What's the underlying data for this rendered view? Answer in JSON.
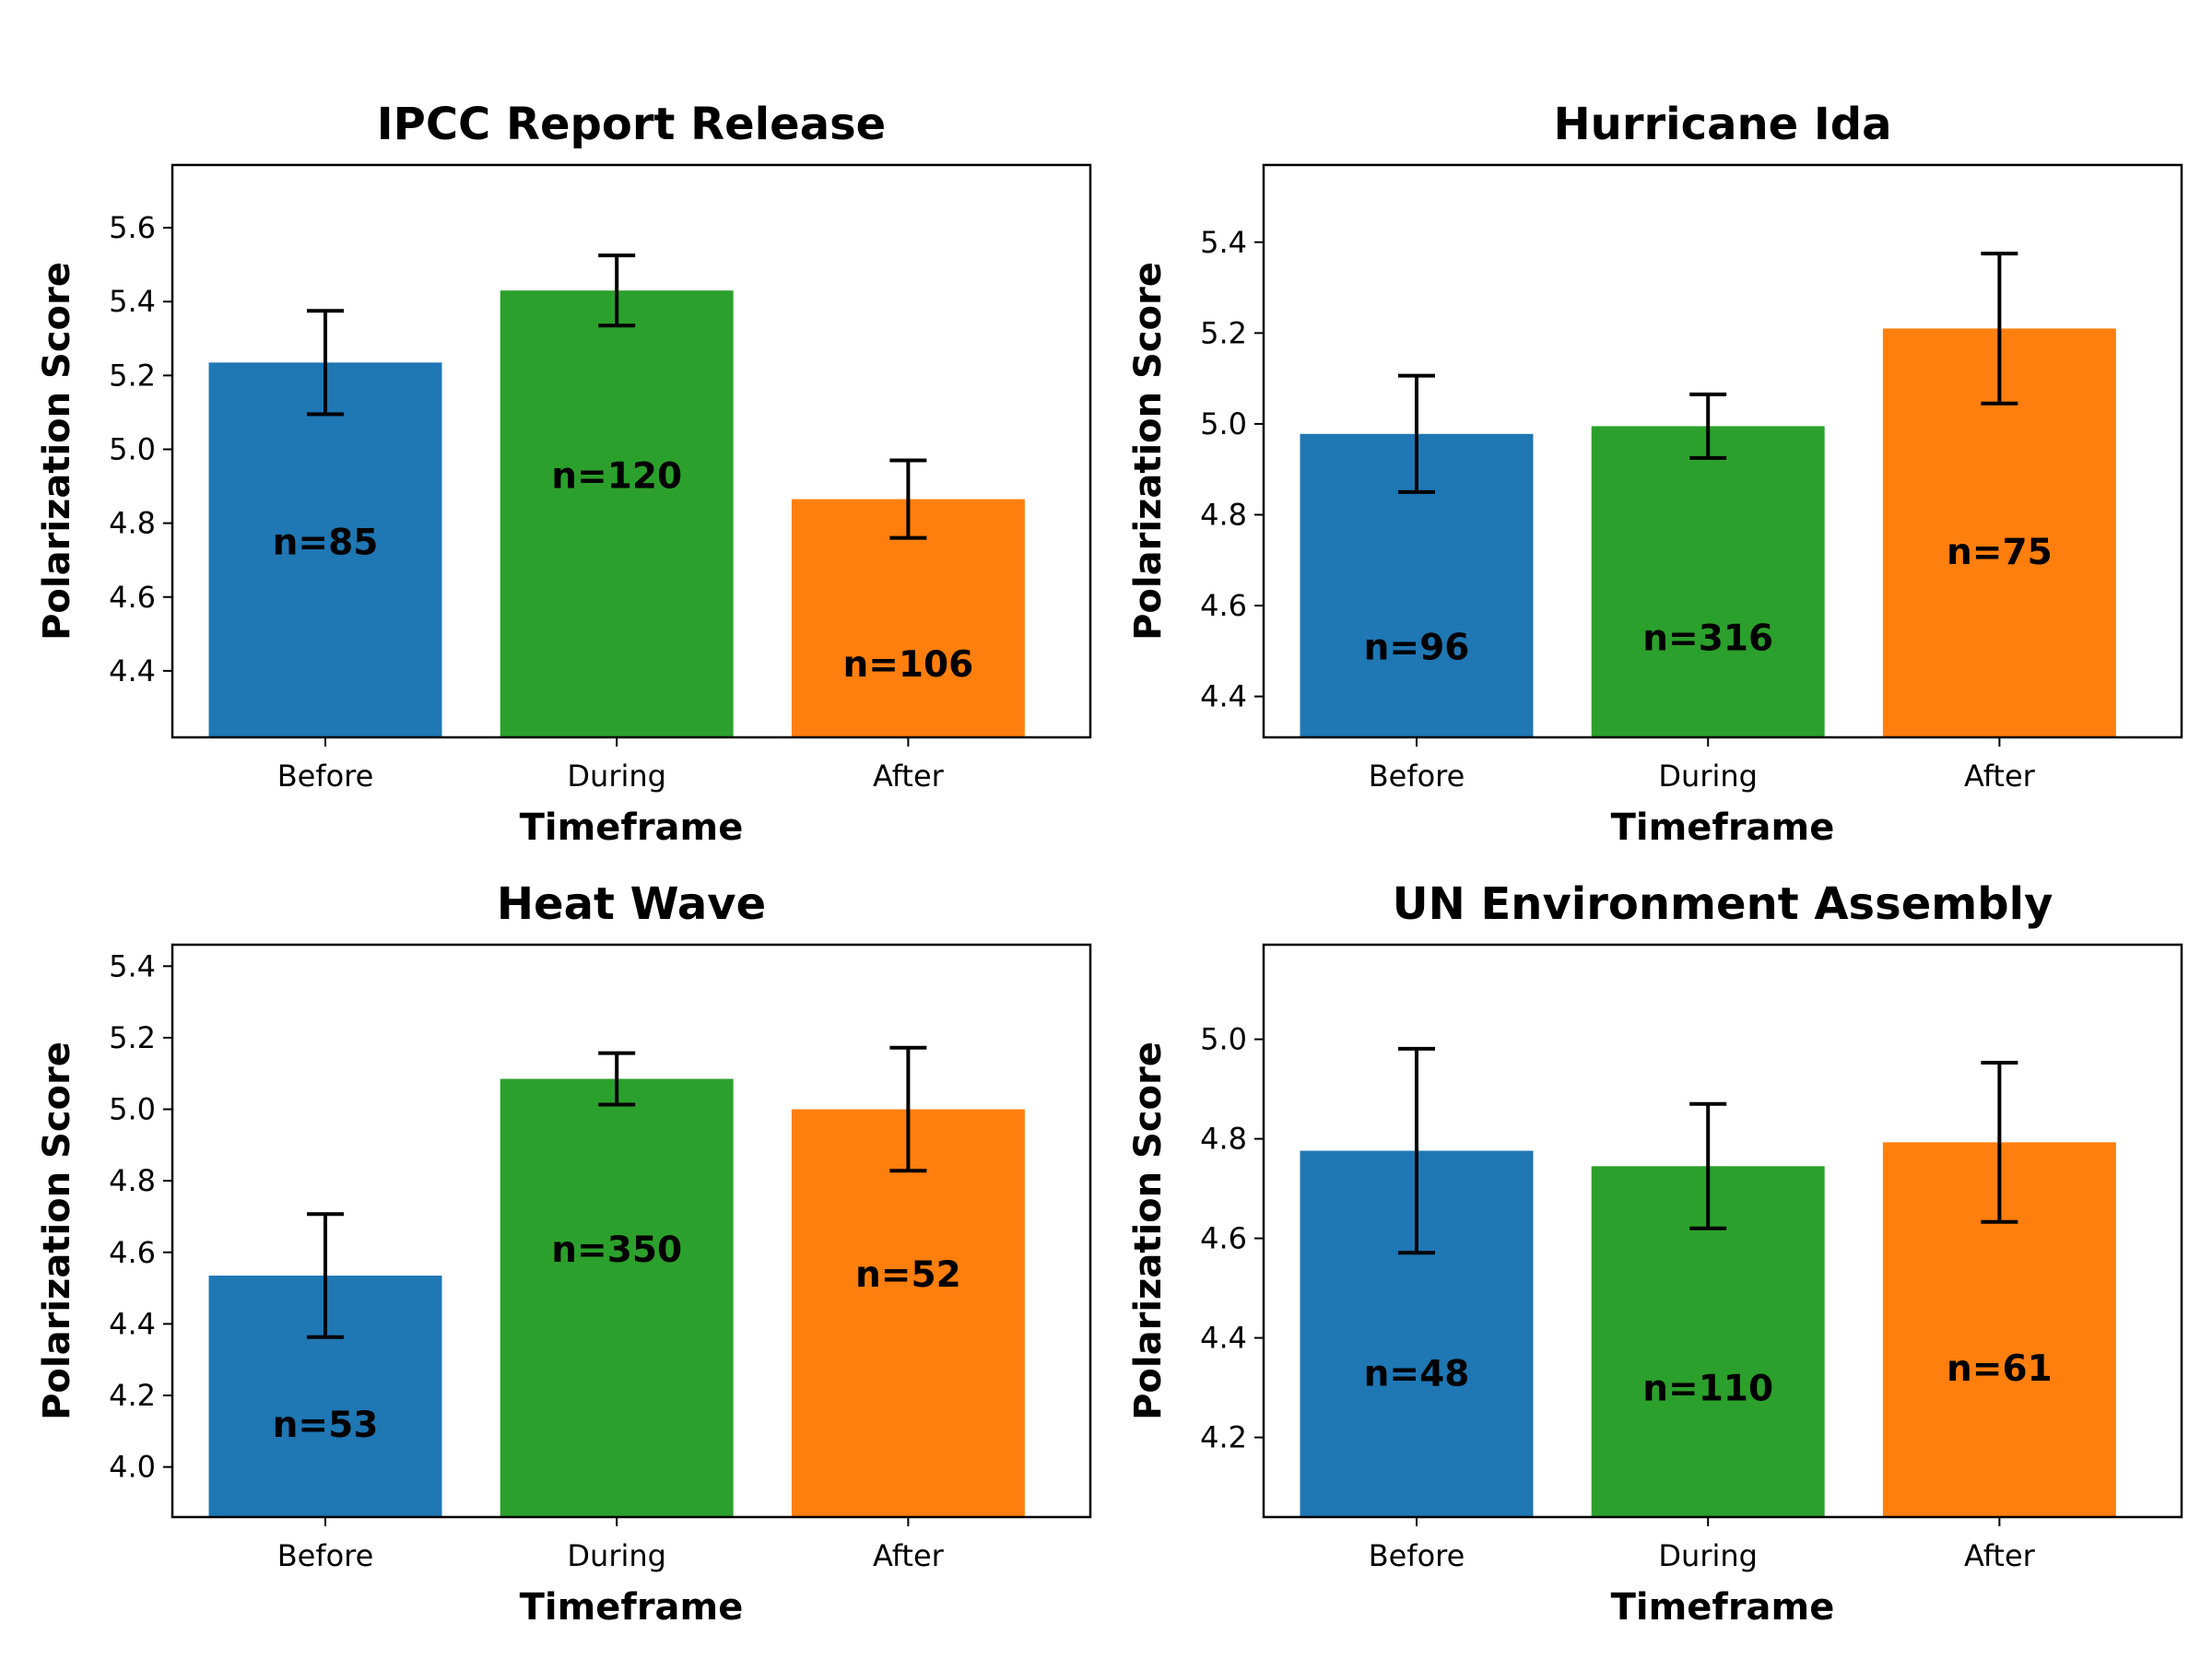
{
  "chart_data": [
    {
      "type": "bar",
      "title": "IPCC Report Release",
      "xlabel": "Timeframe",
      "ylabel": "Polarization Score",
      "categories": [
        "Before",
        "During",
        "After"
      ],
      "values": [
        5.235,
        5.43,
        4.865
      ],
      "errors": [
        0.14,
        0.095,
        0.105
      ],
      "n_labels": [
        "n=85",
        "n=120",
        "n=106"
      ],
      "n_label_y": [
        4.75,
        4.93,
        4.42
      ],
      "ylim": [
        4.22,
        5.77
      ],
      "yticks": [
        4.4,
        4.6,
        4.8,
        5.0,
        5.2,
        5.4,
        5.6
      ],
      "ytick_labels": [
        "4.4",
        "4.6",
        "4.8",
        "5.0",
        "5.2",
        "5.4",
        "5.6"
      ]
    },
    {
      "type": "bar",
      "title": "Hurricane Ida",
      "xlabel": "Timeframe",
      "ylabel": "Polarization Score",
      "categories": [
        "Before",
        "During",
        "After"
      ],
      "values": [
        4.978,
        4.995,
        5.21
      ],
      "errors": [
        0.128,
        0.07,
        0.165
      ],
      "n_labels": [
        "n=96",
        "n=316",
        "n=75"
      ],
      "n_label_y": [
        4.51,
        4.53,
        4.72
      ],
      "ylim": [
        4.31,
        5.57
      ],
      "yticks": [
        4.4,
        4.6,
        4.8,
        5.0,
        5.2,
        5.4
      ],
      "ytick_labels": [
        "4.4",
        "4.6",
        "4.8",
        "5.0",
        "5.2",
        "5.4"
      ]
    },
    {
      "type": "bar",
      "title": "Heat Wave",
      "xlabel": "Timeframe",
      "ylabel": "Polarization Score",
      "categories": [
        "Before",
        "During",
        "After"
      ],
      "values": [
        4.535,
        5.085,
        5.0
      ],
      "errors": [
        0.172,
        0.072,
        0.172
      ],
      "n_labels": [
        "n=53",
        "n=350",
        "n=52"
      ],
      "n_label_y": [
        4.12,
        4.61,
        4.54
      ],
      "ylim": [
        3.86,
        5.46
      ],
      "yticks": [
        4.0,
        4.2,
        4.4,
        4.6,
        4.8,
        5.0,
        5.2,
        5.4
      ],
      "ytick_labels": [
        "4.0",
        "4.2",
        "4.4",
        "4.6",
        "4.8",
        "5.0",
        "5.2",
        "5.4"
      ]
    },
    {
      "type": "bar",
      "title": "UN Environment Assembly",
      "xlabel": "Timeframe",
      "ylabel": "Polarization Score",
      "categories": [
        "Before",
        "During",
        "After"
      ],
      "values": [
        4.776,
        4.745,
        4.793
      ],
      "errors": [
        0.205,
        0.125,
        0.16
      ],
      "n_labels": [
        "n=48",
        "n=110",
        "n=61"
      ],
      "n_label_y": [
        4.33,
        4.3,
        4.34
      ],
      "ylim": [
        4.04,
        5.19
      ],
      "yticks": [
        4.2,
        4.4,
        4.6,
        4.8,
        5.0
      ],
      "ytick_labels": [
        "4.2",
        "4.4",
        "4.6",
        "4.8",
        "5.0"
      ]
    }
  ],
  "colors": {
    "before": "#1f77b4",
    "during": "#2ca02c",
    "after": "#ff7f0e",
    "error_bar": "#000000"
  }
}
